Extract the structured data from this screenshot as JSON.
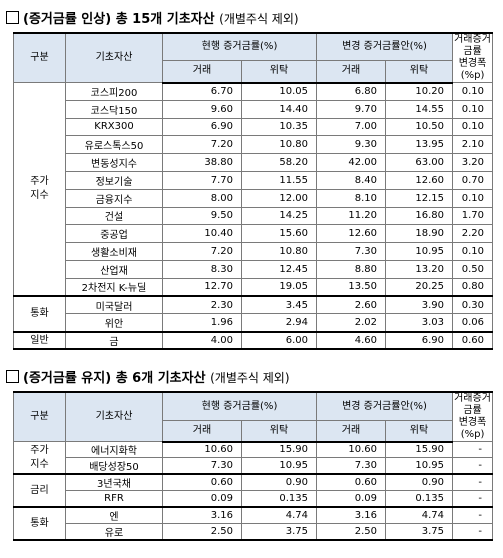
{
  "section1": {
    "title": "(증거금률 인상) 총 15개 기초자산",
    "note": "(개별주식 제외)",
    "headers": {
      "category": "구분",
      "asset": "기초자산",
      "current": "현행 증거금률(%)",
      "proposed": "변경 증거금률안(%)",
      "change": "거래증거금률\n변경폭(%p)",
      "trade": "거래",
      "consign": "위탁"
    },
    "groups": [
      {
        "name": "주가\n지수",
        "rows": [
          {
            "asset": "코스피200",
            "cur_trade": "6.70",
            "cur_consign": "10.05",
            "new_trade": "6.80",
            "new_consign": "10.20",
            "change": "0.10"
          },
          {
            "asset": "코스닥150",
            "cur_trade": "9.60",
            "cur_consign": "14.40",
            "new_trade": "9.70",
            "new_consign": "14.55",
            "change": "0.10"
          },
          {
            "asset": "KRX300",
            "cur_trade": "6.90",
            "cur_consign": "10.35",
            "new_trade": "7.00",
            "new_consign": "10.50",
            "change": "0.10"
          },
          {
            "asset": "유로스톡스50",
            "cur_trade": "7.20",
            "cur_consign": "10.80",
            "new_trade": "9.30",
            "new_consign": "13.95",
            "change": "2.10"
          },
          {
            "asset": "변동성지수",
            "cur_trade": "38.80",
            "cur_consign": "58.20",
            "new_trade": "42.00",
            "new_consign": "63.00",
            "change": "3.20"
          },
          {
            "asset": "정보기술",
            "cur_trade": "7.70",
            "cur_consign": "11.55",
            "new_trade": "8.40",
            "new_consign": "12.60",
            "change": "0.70"
          },
          {
            "asset": "금융지수",
            "cur_trade": "8.00",
            "cur_consign": "12.00",
            "new_trade": "8.10",
            "new_consign": "12.15",
            "change": "0.10"
          },
          {
            "asset": "건설",
            "cur_trade": "9.50",
            "cur_consign": "14.25",
            "new_trade": "11.20",
            "new_consign": "16.80",
            "change": "1.70"
          },
          {
            "asset": "중공업",
            "cur_trade": "10.40",
            "cur_consign": "15.60",
            "new_trade": "12.60",
            "new_consign": "18.90",
            "change": "2.20"
          },
          {
            "asset": "생활소비재",
            "cur_trade": "7.20",
            "cur_consign": "10.80",
            "new_trade": "7.30",
            "new_consign": "10.95",
            "change": "0.10"
          },
          {
            "asset": "산업재",
            "cur_trade": "8.30",
            "cur_consign": "12.45",
            "new_trade": "8.80",
            "new_consign": "13.20",
            "change": "0.50"
          },
          {
            "asset": "2차전지 K-뉴딜",
            "cur_trade": "12.70",
            "cur_consign": "19.05",
            "new_trade": "13.50",
            "new_consign": "20.25",
            "change": "0.80"
          }
        ]
      },
      {
        "name": "통화",
        "rows": [
          {
            "asset": "미국달러",
            "cur_trade": "2.30",
            "cur_consign": "3.45",
            "new_trade": "2.60",
            "new_consign": "3.90",
            "change": "0.30"
          },
          {
            "asset": "위안",
            "cur_trade": "1.96",
            "cur_consign": "2.94",
            "new_trade": "2.02",
            "new_consign": "3.03",
            "change": "0.06"
          }
        ]
      },
      {
        "name": "일반",
        "rows": [
          {
            "asset": "금",
            "cur_trade": "4.00",
            "cur_consign": "6.00",
            "new_trade": "4.60",
            "new_consign": "6.90",
            "change": "0.60"
          }
        ]
      }
    ]
  },
  "section2": {
    "title": "(증거금률 유지) 총 6개 기초자산",
    "note": "(개별주식 제외)",
    "headers": {
      "category": "구분",
      "asset": "기초자산",
      "current": "현행 증거금률(%)",
      "proposed": "변경 증거금률안(%)",
      "change": "거래증거금률\n변경폭(%p)",
      "trade": "거래",
      "consign": "위탁"
    },
    "groups": [
      {
        "name": "주가\n지수",
        "rows": [
          {
            "asset": "에너지화학",
            "cur_trade": "10.60",
            "cur_consign": "15.90",
            "new_trade": "10.60",
            "new_consign": "15.90",
            "change": "-"
          },
          {
            "asset": "배당성장50",
            "cur_trade": "7.30",
            "cur_consign": "10.95",
            "new_trade": "7.30",
            "new_consign": "10.95",
            "change": "-"
          }
        ]
      },
      {
        "name": "금리",
        "rows": [
          {
            "asset": "3년국채",
            "cur_trade": "0.60",
            "cur_consign": "0.90",
            "new_trade": "0.60",
            "new_consign": "0.90",
            "change": "-"
          },
          {
            "asset": "RFR",
            "cur_trade": "0.09",
            "cur_consign": "0.135",
            "new_trade": "0.09",
            "new_consign": "0.135",
            "change": "-"
          }
        ]
      },
      {
        "name": "통화",
        "rows": [
          {
            "asset": "엔",
            "cur_trade": "3.16",
            "cur_consign": "4.74",
            "new_trade": "3.16",
            "new_consign": "4.74",
            "change": "-"
          },
          {
            "asset": "유로",
            "cur_trade": "2.50",
            "cur_consign": "3.75",
            "new_trade": "2.50",
            "new_consign": "3.75",
            "change": "-"
          }
        ]
      }
    ]
  }
}
